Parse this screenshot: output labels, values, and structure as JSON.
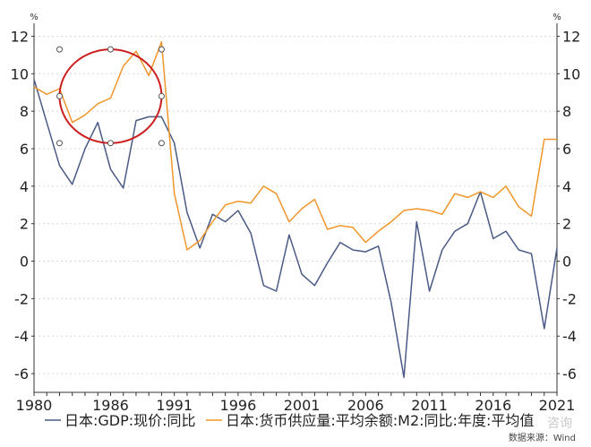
{
  "chart_data": {
    "type": "line",
    "units": {
      "left": "%",
      "right": "%"
    },
    "x": [
      1980,
      1981,
      1982,
      1983,
      1984,
      1985,
      1986,
      1987,
      1988,
      1989,
      1990,
      1991,
      1992,
      1993,
      1994,
      1995,
      1996,
      1997,
      1998,
      1999,
      2000,
      2001,
      2002,
      2003,
      2004,
      2005,
      2006,
      2007,
      2008,
      2009,
      2010,
      2011,
      2012,
      2013,
      2014,
      2015,
      2016,
      2017,
      2018,
      2019,
      2020,
      2021
    ],
    "x_tick_labels": [
      "1980",
      "1986",
      "1991",
      "1996",
      "2001",
      "2006",
      "2011",
      "2016",
      "2021"
    ],
    "x_tick_values": [
      1980,
      1986,
      1991,
      1996,
      2001,
      2006,
      2011,
      2016,
      2021
    ],
    "xlim": [
      1980,
      2021
    ],
    "ylim": [
      -7,
      12.5
    ],
    "y_ticks": [
      -6,
      -4,
      -2,
      0,
      2,
      4,
      6,
      8,
      10,
      12
    ],
    "grid": true,
    "legend_position": "bottom",
    "series": [
      {
        "name": "日本:GDP:现价:同比",
        "color": "#4a5a85",
        "values": [
          9.7,
          7.4,
          5.1,
          4.1,
          6.0,
          7.4,
          4.9,
          3.9,
          7.5,
          7.7,
          7.7,
          6.3,
          2.6,
          0.7,
          2.5,
          2.1,
          2.7,
          1.5,
          -1.3,
          -1.6,
          1.4,
          -0.7,
          -1.3,
          -0.1,
          1.0,
          0.6,
          0.5,
          0.8,
          -2.2,
          -6.2,
          2.1,
          -1.6,
          0.6,
          1.6,
          2.0,
          3.7,
          1.2,
          1.6,
          0.6,
          0.4,
          -3.6,
          0.7
        ]
      },
      {
        "name": "日本:货币供应量:平均余额:M2:同比:年度:平均值",
        "color": "#f0962a",
        "values": [
          9.3,
          8.9,
          9.2,
          7.4,
          7.8,
          8.4,
          8.7,
          10.4,
          11.2,
          9.9,
          11.7,
          3.6,
          0.6,
          1.1,
          2.1,
          3.0,
          3.2,
          3.1,
          4.0,
          3.6,
          2.1,
          2.8,
          3.3,
          1.7,
          1.9,
          1.8,
          1.0,
          1.6,
          2.1,
          2.7,
          2.8,
          2.7,
          2.5,
          3.6,
          3.4,
          3.7,
          3.4,
          4.0,
          2.9,
          2.4,
          6.5,
          6.5
        ]
      }
    ],
    "annotations": [
      {
        "type": "ellipse",
        "color": "#cc1f1f",
        "x_range": [
          1982,
          1990
        ],
        "y_range": [
          6.3,
          11.3
        ]
      }
    ],
    "source_text": "数据来源：Wind",
    "watermark_text": "咨询"
  }
}
